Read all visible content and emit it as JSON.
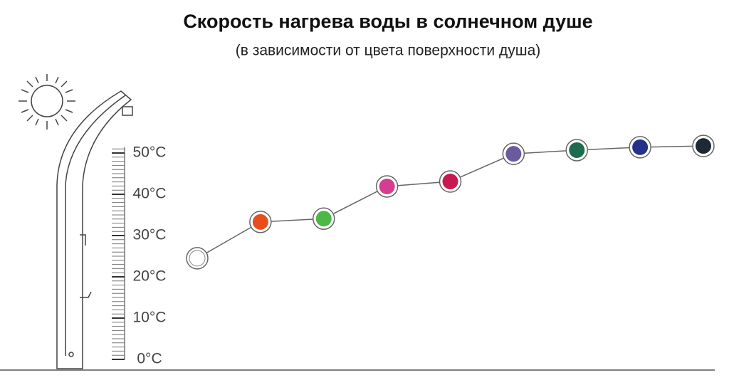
{
  "chart_data": {
    "type": "line",
    "title": "Скорость нагрева воды в солнечном душе",
    "subtitle": "(в зависимости от цвета поверхности душа)",
    "categories": [
      null,
      null,
      null,
      null,
      null,
      null,
      null,
      null,
      null
    ],
    "values": [
      24.5,
      33.3,
      34.1,
      41.9,
      43.1,
      49.8,
      50.7,
      51.4,
      51.7
    ],
    "colors": [
      "#ffffff",
      "#e84e1b",
      "#4cb848",
      "#d63c8f",
      "#c8184f",
      "#6a5a9e",
      "#1e6b4f",
      "#26318a",
      "#1d2a36"
    ],
    "line_color": "#666666",
    "ylim": [
      0,
      55
    ],
    "yticks": [
      {
        "value": 0,
        "label": "0°C"
      },
      {
        "value": 10,
        "label": "10°C"
      },
      {
        "value": 20,
        "label": "20°C"
      },
      {
        "value": 30,
        "label": "30°C"
      },
      {
        "value": 40,
        "label": "40°C"
      },
      {
        "value": 50,
        "label": "50°C"
      }
    ]
  }
}
